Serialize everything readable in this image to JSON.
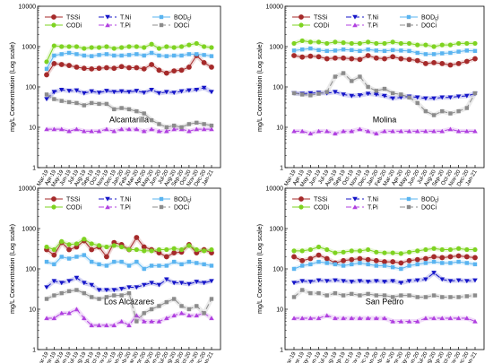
{
  "figure": {
    "months": [
      "Mar-19",
      "Apr-19",
      "May-19",
      "Jun-19",
      "Jul-19",
      "Aug-19",
      "Sep-19",
      "Oct-19",
      "Nov-19",
      "Dec-19",
      "Jan-20",
      "Feb-20",
      "Mar-20",
      "Apr-20",
      "May-20",
      "Jun-20",
      "Jul-20",
      "Aug-20",
      "Sep-20",
      "Oct-20",
      "Nov-20",
      "Dec-20",
      "Jan-21"
    ],
    "y_ticks": [
      1,
      10,
      100,
      1000,
      10000
    ],
    "y_tick_labels": [
      "1",
      "10",
      "100",
      "1000",
      "10000"
    ],
    "legend_labels": [
      "TSSi",
      "CODi",
      "T.Ni",
      "T.Pi",
      "BOD5i",
      "DOCi"
    ],
    "colors": {
      "TSSi": "#a52a2a",
      "CODi": "#7ed321",
      "T.Ni": "#1515c8",
      "T.Pi": "#b040e0",
      "BOD5i": "#5ab4f0",
      "DOCi": "#8c8c8c"
    }
  },
  "chart_data": [
    {
      "type": "line",
      "title": "Alcantarilla",
      "ylabel": "mg/L Concentration (Log scale)",
      "y_scale": "log",
      "ylim": [
        1,
        10000
      ],
      "legend_position": "top",
      "series": [
        {
          "name": "TSSi",
          "values": [
            200,
            380,
            360,
            340,
            310,
            290,
            280,
            290,
            300,
            290,
            320,
            300,
            300,
            280,
            360,
            260,
            220,
            250,
            260,
            310,
            600,
            400,
            310
          ]
        },
        {
          "name": "CODi",
          "values": [
            420,
            1050,
            1000,
            1000,
            1000,
            900,
            950,
            950,
            1000,
            900,
            950,
            1000,
            1000,
            950,
            1150,
            900,
            1000,
            950,
            1000,
            1100,
            1200,
            1000,
            950
          ]
        },
        {
          "name": "T.Ni",
          "values": [
            50,
            75,
            85,
            80,
            82,
            70,
            78,
            72,
            80,
            75,
            78,
            75,
            80,
            72,
            85,
            70,
            75,
            72,
            78,
            82,
            85,
            95,
            75
          ]
        },
        {
          "name": "T.Pi",
          "values": [
            9,
            9,
            9,
            8,
            9,
            8,
            8,
            8,
            9,
            8,
            9,
            9,
            9,
            8,
            9,
            8,
            8,
            9,
            9,
            8,
            9,
            9,
            9
          ]
        },
        {
          "name": "BOD5i",
          "values": [
            280,
            600,
            650,
            700,
            650,
            600,
            580,
            620,
            650,
            600,
            600,
            620,
            650,
            600,
            700,
            600,
            580,
            600,
            600,
            650,
            650,
            620,
            580
          ]
        },
        {
          "name": "DOCi",
          "values": [
            65,
            50,
            45,
            42,
            40,
            35,
            40,
            38,
            38,
            28,
            30,
            28,
            25,
            22,
            15,
            12,
            10,
            11,
            10,
            12,
            13,
            12,
            11
          ]
        }
      ]
    },
    {
      "type": "line",
      "title": "Molina",
      "ylabel": "mg/L Concentration (Log scale)",
      "y_scale": "log",
      "ylim": [
        1,
        10000
      ],
      "legend_position": "top",
      "series": [
        {
          "name": "TSSi",
          "values": [
            600,
            550,
            580,
            560,
            500,
            520,
            520,
            500,
            480,
            600,
            520,
            500,
            560,
            500,
            480,
            450,
            380,
            400,
            380,
            350,
            380,
            430,
            500
          ]
        },
        {
          "name": "CODi",
          "values": [
            1200,
            1400,
            1300,
            1300,
            1200,
            1300,
            1250,
            1200,
            1200,
            1300,
            1200,
            1200,
            1300,
            1200,
            1200,
            1100,
            1100,
            1000,
            1100,
            1100,
            1200,
            1200,
            1200
          ]
        },
        {
          "name": "T.Ni",
          "values": [
            70,
            68,
            70,
            72,
            70,
            75,
            65,
            60,
            62,
            68,
            65,
            60,
            52,
            55,
            58,
            55,
            52,
            52,
            55,
            55,
            58,
            60,
            68
          ]
        },
        {
          "name": "T.Pi",
          "values": [
            8,
            8,
            7,
            8,
            8,
            7,
            8,
            8,
            9,
            8,
            7,
            8,
            8,
            8,
            8,
            8,
            8,
            8,
            8,
            9,
            8,
            8,
            8
          ]
        },
        {
          "name": "BOD5i",
          "values": [
            800,
            850,
            900,
            820,
            780,
            800,
            850,
            820,
            780,
            850,
            800,
            780,
            820,
            800,
            780,
            700,
            650,
            650,
            680,
            700,
            750,
            800,
            780
          ]
        },
        {
          "name": "DOCi",
          "values": [
            70,
            65,
            62,
            68,
            75,
            180,
            220,
            140,
            180,
            100,
            80,
            90,
            70,
            65,
            55,
            40,
            25,
            20,
            25,
            22,
            25,
            30,
            70
          ]
        }
      ]
    },
    {
      "type": "line",
      "title": "Los Alcázares",
      "ylabel": "mg/L Concentration (Log scale)",
      "y_scale": "log",
      "ylim": [
        1,
        10000
      ],
      "legend_position": "top",
      "series": [
        {
          "name": "TSSi",
          "values": [
            300,
            220,
            450,
            300,
            350,
            500,
            300,
            350,
            200,
            450,
            400,
            300,
            600,
            350,
            300,
            250,
            200,
            250,
            260,
            400,
            250,
            300,
            250
          ]
        },
        {
          "name": "CODi",
          "values": [
            350,
            300,
            480,
            400,
            420,
            550,
            420,
            380,
            350,
            380,
            350,
            300,
            300,
            280,
            280,
            300,
            300,
            320,
            300,
            380,
            300,
            280,
            300
          ]
        },
        {
          "name": "T.Ni",
          "values": [
            35,
            50,
            45,
            50,
            60,
            45,
            40,
            30,
            30,
            30,
            32,
            35,
            35,
            40,
            45,
            40,
            55,
            45,
            45,
            42,
            48,
            45,
            50
          ]
        },
        {
          "name": "T.Pi",
          "values": [
            6,
            6,
            8,
            8,
            10,
            6,
            4,
            4,
            4,
            4,
            5,
            4,
            7,
            5,
            5,
            5,
            6,
            7,
            8,
            7,
            7,
            8,
            6
          ]
        },
        {
          "name": "BOD5i",
          "values": [
            150,
            130,
            200,
            180,
            200,
            220,
            150,
            130,
            120,
            150,
            150,
            120,
            150,
            100,
            120,
            120,
            120,
            150,
            130,
            150,
            140,
            130,
            120
          ]
        },
        {
          "name": "DOCi",
          "values": [
            18,
            22,
            25,
            28,
            30,
            25,
            20,
            18,
            20,
            22,
            22,
            25,
            5,
            8,
            10,
            12,
            15,
            18,
            12,
            10,
            12,
            8,
            18
          ]
        }
      ]
    },
    {
      "type": "line",
      "title": "San Pedro",
      "ylabel": "mg/L Concentration (Log scale)",
      "y_scale": "log",
      "ylim": [
        1,
        10000
      ],
      "legend_position": "top",
      "series": [
        {
          "name": "TSSi",
          "values": [
            200,
            160,
            180,
            220,
            180,
            140,
            160,
            170,
            180,
            170,
            160,
            150,
            150,
            140,
            160,
            170,
            180,
            200,
            190,
            200,
            210,
            200,
            190
          ]
        },
        {
          "name": "CODi",
          "values": [
            280,
            280,
            300,
            350,
            300,
            250,
            260,
            280,
            280,
            300,
            260,
            250,
            250,
            240,
            260,
            280,
            300,
            320,
            300,
            300,
            320,
            300,
            300
          ]
        },
        {
          "name": "T.Ni",
          "values": [
            45,
            50,
            48,
            52,
            50,
            52,
            50,
            48,
            50,
            48,
            50,
            48,
            50,
            45,
            50,
            52,
            55,
            80,
            55,
            50,
            52,
            50,
            52
          ]
        },
        {
          "name": "T.Pi",
          "values": [
            6,
            6,
            6,
            6,
            7,
            6,
            6,
            6,
            6,
            6,
            6,
            6,
            5,
            5,
            5,
            5,
            6,
            6,
            6,
            6,
            6,
            6,
            5
          ]
        },
        {
          "name": "BOD5i",
          "values": [
            100,
            120,
            130,
            150,
            140,
            130,
            120,
            130,
            140,
            130,
            120,
            120,
            110,
            100,
            120,
            130,
            140,
            150,
            140,
            140,
            150,
            140,
            130
          ]
        },
        {
          "name": "DOCi",
          "values": [
            20,
            30,
            25,
            25,
            22,
            25,
            22,
            24,
            22,
            24,
            22,
            22,
            20,
            22,
            22,
            20,
            20,
            22,
            20,
            20,
            20,
            21,
            22
          ]
        }
      ]
    }
  ]
}
